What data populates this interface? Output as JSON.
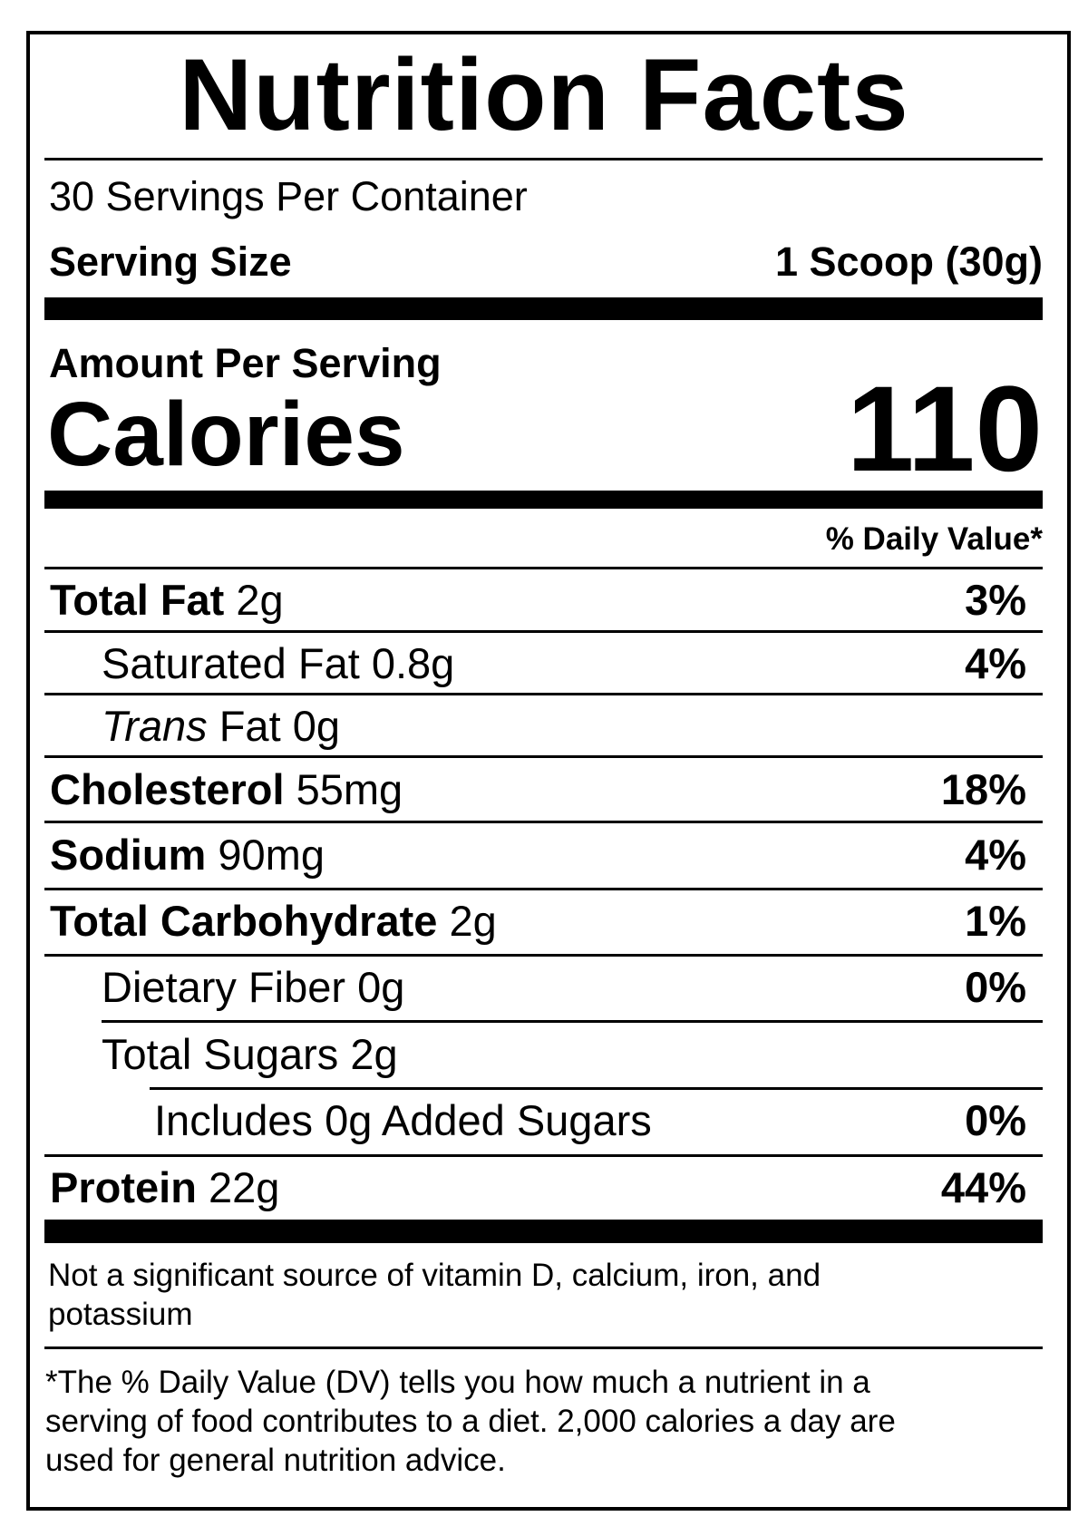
{
  "title": "Nutrition Facts",
  "servings_per_container": "30 Servings Per Container",
  "serving_size": {
    "label": "Serving Size",
    "value": "1 Scoop (30g)"
  },
  "amount_per_serving": "Amount Per Serving",
  "calories": {
    "label": "Calories",
    "value": "110"
  },
  "daily_value_header": "% Daily Value*",
  "nutrients": [
    {
      "name": "Total Fat",
      "amount": "2g",
      "dv": "3%"
    },
    {
      "name": "Saturated Fat",
      "amount": "0.8g",
      "dv": "4%"
    },
    {
      "name": "Trans",
      "name_rest": "Fat",
      "amount": "0g",
      "dv": ""
    },
    {
      "name": "Cholesterol",
      "amount": "55mg",
      "dv": "18%"
    },
    {
      "name": "Sodium",
      "amount": "90mg",
      "dv": "4%"
    },
    {
      "name": "Total Carbohydrate",
      "amount": "2g",
      "dv": "1%"
    },
    {
      "name": "Dietary Fiber",
      "amount": "0g",
      "dv": "0%"
    },
    {
      "name": "Total Sugars",
      "amount": "2g",
      "dv": ""
    },
    {
      "name": "Includes 0g Added Sugars",
      "amount": "",
      "dv": "0%"
    },
    {
      "name": "Protein",
      "amount": "22g",
      "dv": "44%"
    }
  ],
  "footnote_vitamins": [
    "Not a significant source of vitamin D, calcium, iron, and",
    "potassium"
  ],
  "footnote_dv": [
    "*The % Daily Value (DV) tells you how much a nutrient in a",
    "serving of food contributes to a diet. 2,000 calories a day are",
    "used for general nutrition advice."
  ]
}
